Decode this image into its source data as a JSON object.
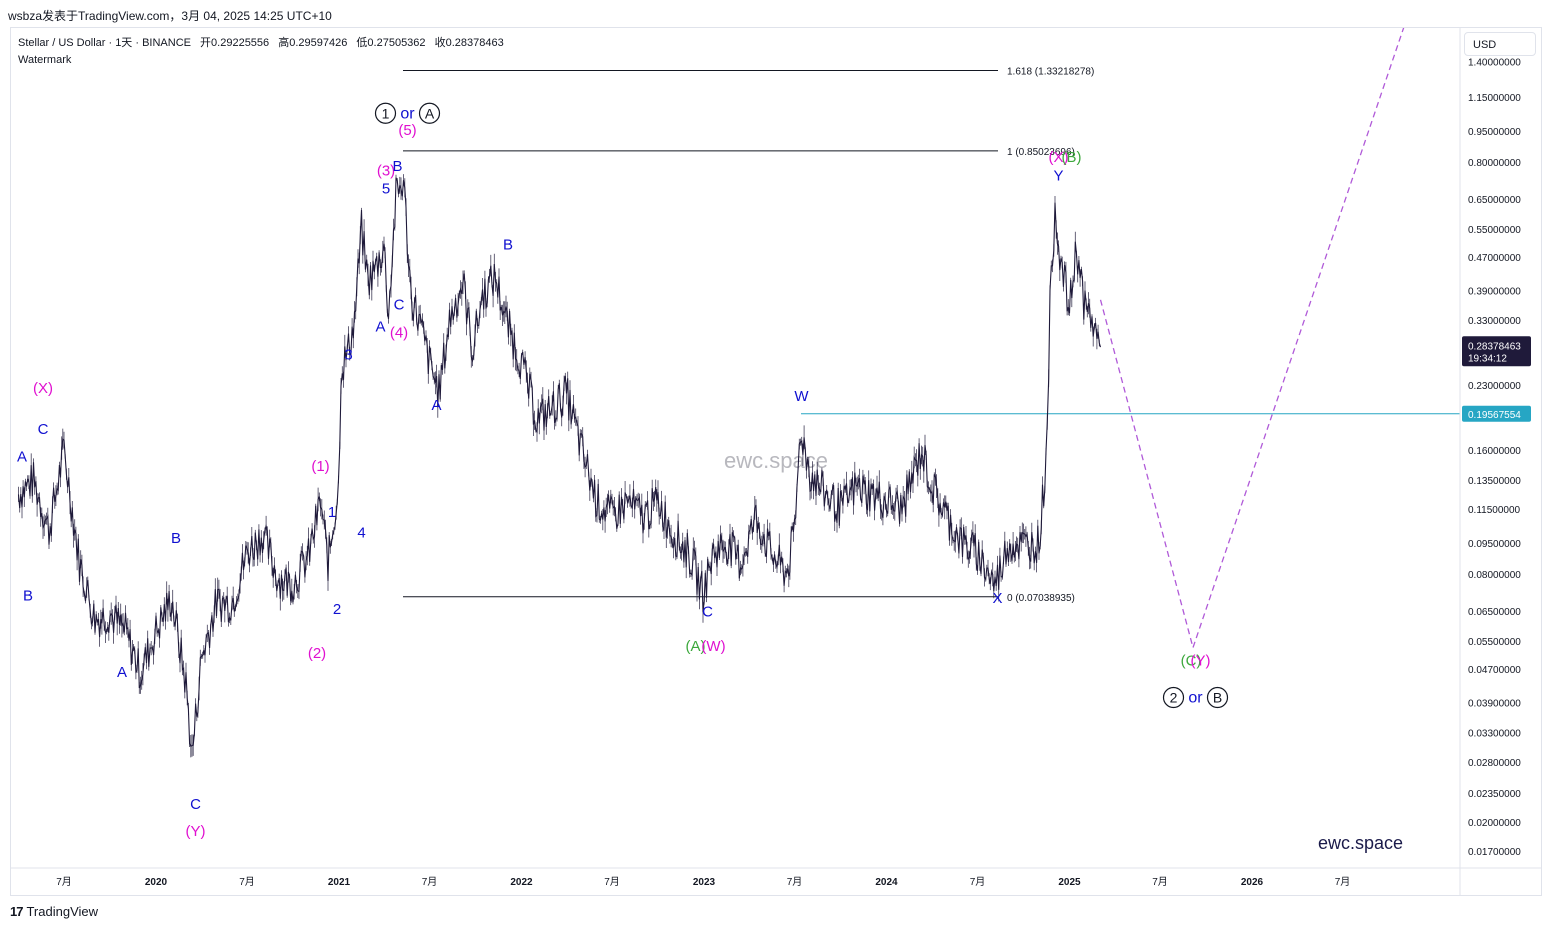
{
  "header": {
    "publish_line": "wsbza发表于TradingView.com，3月 04, 2025 14:25 UTC+10"
  },
  "legend": {
    "symbol": "Stellar / US Dollar · 1天 · BINANCE",
    "open_label": "开",
    "open": "0.29225556",
    "high_label": "高",
    "high": "0.29597426",
    "low_label": "低",
    "low": "0.27505362",
    "close_label": "收",
    "close": "0.28378463",
    "watermark_label": "Watermark"
  },
  "currency": "USD",
  "watermark_center": "ewc.space",
  "watermark_corner": "ewc.space",
  "footer": {
    "logo": "17",
    "brand": "TradingView"
  },
  "colors": {
    "candles": "#1f1a3a",
    "blue": "#1010d0",
    "magenta": "#e010d0",
    "green": "#3ca83c",
    "black": "#131722",
    "cyan": "#26a6c4",
    "projection": "#b05ad8",
    "price_tag": "#1f1a3a"
  },
  "chart_data": {
    "type": "line",
    "series": [
      {
        "values": [
          [
            "2019-04-01",
            0.125
          ],
          [
            "2019-05-01",
            0.135
          ],
          [
            "2019-06-01",
            0.102
          ],
          [
            "2019-07-01",
            0.16
          ],
          [
            "2019-08-01",
            0.085
          ],
          [
            "2019-09-01",
            0.062
          ],
          [
            "2019-10-01",
            0.064
          ],
          [
            "2019-11-01",
            0.058
          ],
          [
            "2019-12-01",
            0.046
          ],
          [
            "2020-01-01",
            0.058
          ],
          [
            "2020-02-01",
            0.07
          ],
          [
            "2020-03-01",
            0.043
          ],
          [
            "2020-03-13",
            0.029
          ],
          [
            "2020-04-01",
            0.05
          ],
          [
            "2020-05-01",
            0.068
          ],
          [
            "2020-06-01",
            0.068
          ],
          [
            "2020-07-01",
            0.09
          ],
          [
            "2020-08-01",
            0.1
          ],
          [
            "2020-09-01",
            0.078
          ],
          [
            "2020-10-01",
            0.076
          ],
          [
            "2020-11-01",
            0.088
          ],
          [
            "2020-11-25",
            0.12
          ],
          [
            "2020-12-10",
            0.085
          ],
          [
            "2020-12-31",
            0.13
          ],
          [
            "2021-01-05",
            0.25
          ],
          [
            "2021-01-20",
            0.28
          ],
          [
            "2021-02-01",
            0.33
          ],
          [
            "2021-02-15",
            0.55
          ],
          [
            "2021-02-28",
            0.41
          ],
          [
            "2021-03-15",
            0.44
          ],
          [
            "2021-04-01",
            0.5
          ],
          [
            "2021-04-10",
            0.34
          ],
          [
            "2021-04-25",
            0.66
          ],
          [
            "2021-05-10",
            0.72
          ],
          [
            "2021-05-25",
            0.38
          ],
          [
            "2021-06-10",
            0.33
          ],
          [
            "2021-07-01",
            0.26
          ],
          [
            "2021-07-20",
            0.22
          ],
          [
            "2021-08-10",
            0.33
          ],
          [
            "2021-09-06",
            0.41
          ],
          [
            "2021-09-25",
            0.28
          ],
          [
            "2021-10-15",
            0.38
          ],
          [
            "2021-11-10",
            0.42
          ],
          [
            "2021-12-01",
            0.33
          ],
          [
            "2022-01-01",
            0.26
          ],
          [
            "2022-02-01",
            0.19
          ],
          [
            "2022-03-01",
            0.2
          ],
          [
            "2022-04-01",
            0.22
          ],
          [
            "2022-05-01",
            0.16
          ],
          [
            "2022-06-01",
            0.12
          ],
          [
            "2022-07-01",
            0.11
          ],
          [
            "2022-08-01",
            0.12
          ],
          [
            "2022-09-01",
            0.11
          ],
          [
            "2022-10-01",
            0.12
          ],
          [
            "2022-11-01",
            0.1
          ],
          [
            "2022-12-01",
            0.09
          ],
          [
            "2022-12-30",
            0.072
          ],
          [
            "2023-01-20",
            0.09
          ],
          [
            "2023-02-15",
            0.095
          ],
          [
            "2023-03-15",
            0.085
          ],
          [
            "2023-04-15",
            0.11
          ],
          [
            "2023-05-15",
            0.09
          ],
          [
            "2023-06-15",
            0.08
          ],
          [
            "2023-07-01",
            0.1
          ],
          [
            "2023-07-13",
            0.18
          ],
          [
            "2023-08-01",
            0.14
          ],
          [
            "2023-09-01",
            0.125
          ],
          [
            "2023-10-01",
            0.115
          ],
          [
            "2023-11-01",
            0.13
          ],
          [
            "2023-12-01",
            0.125
          ],
          [
            "2024-01-01",
            0.12
          ],
          [
            "2024-02-01",
            0.115
          ],
          [
            "2024-03-11",
            0.16
          ],
          [
            "2024-04-01",
            0.13
          ],
          [
            "2024-05-01",
            0.11
          ],
          [
            "2024-06-01",
            0.095
          ],
          [
            "2024-07-01",
            0.09
          ],
          [
            "2024-08-05",
            0.075
          ],
          [
            "2024-09-01",
            0.095
          ],
          [
            "2024-10-01",
            0.094
          ],
          [
            "2024-11-01",
            0.095
          ],
          [
            "2024-11-15",
            0.15
          ],
          [
            "2024-11-23",
            0.35
          ],
          [
            "2024-12-03",
            0.63
          ],
          [
            "2024-12-15",
            0.45
          ],
          [
            "2025-01-01",
            0.35
          ],
          [
            "2025-01-15",
            0.5
          ],
          [
            "2025-02-01",
            0.35
          ],
          [
            "2025-02-15",
            0.33
          ],
          [
            "2025-03-04",
            0.284
          ]
        ]
      }
    ],
    "projection": [
      [
        "2025-03-04",
        0.37
      ],
      [
        "2025-09-05",
        0.053
      ],
      [
        "2026-11-01",
        1.7
      ]
    ],
    "fib_levels": [
      {
        "label": "1.618 (1.33218278)",
        "value": 1.33218278
      },
      {
        "label": "1 (0.85023696)",
        "value": 0.85023696
      },
      {
        "label": "0 (0.07038935)",
        "value": 0.07038935
      }
    ],
    "horizontal_line": {
      "value": 0.19567554,
      "label": "0.19567554"
    },
    "last_price": {
      "value": "0.28378463",
      "countdown": "19:34:12"
    },
    "y_ticks": [
      "1.40000000",
      "1.15000000",
      "0.95000000",
      "0.80000000",
      "0.65000000",
      "0.55000000",
      "0.47000000",
      "0.39000000",
      "0.33000000",
      "0.23000000",
      "0.16000000",
      "0.13500000",
      "0.11500000",
      "0.09500000",
      "0.08000000",
      "0.06500000",
      "0.05500000",
      "0.04700000",
      "0.03900000",
      "0.03300000",
      "0.02800000",
      "0.02350000",
      "0.02000000",
      "0.01700000"
    ],
    "x_ticks": [
      "7月",
      "2020",
      "7月",
      "2021",
      "7月",
      "2022",
      "7月",
      "2023",
      "7月",
      "2024",
      "7月",
      "2025",
      "7月",
      "2026",
      "7月"
    ],
    "y_scale": "log",
    "grid": false,
    "wave_labels": [
      {
        "t": "A",
        "d": "2019-04-08",
        "v": 0.15,
        "c": "blue"
      },
      {
        "t": "B",
        "d": "2019-04-20",
        "v": 0.069,
        "c": "blue"
      },
      {
        "t": "C",
        "d": "2019-05-20",
        "v": 0.175,
        "c": "blue"
      },
      {
        "t": "(X)",
        "d": "2019-05-20",
        "v": 0.22,
        "c": "magenta"
      },
      {
        "t": "A",
        "d": "2019-10-25",
        "v": 0.045,
        "c": "blue"
      },
      {
        "t": "B",
        "d": "2020-02-10",
        "v": 0.095,
        "c": "blue"
      },
      {
        "t": "C",
        "d": "2020-03-20",
        "v": 0.0215,
        "c": "blue"
      },
      {
        "t": "(Y)",
        "d": "2020-03-20",
        "v": 0.0185,
        "c": "magenta"
      },
      {
        "t": "(1)",
        "d": "2020-11-25",
        "v": 0.142,
        "c": "magenta"
      },
      {
        "t": "(2)",
        "d": "2020-11-18",
        "v": 0.05,
        "c": "magenta"
      },
      {
        "t": "1",
        "d": "2020-12-18",
        "v": 0.11,
        "c": "blue"
      },
      {
        "t": "2",
        "d": "2020-12-28",
        "v": 0.064,
        "c": "blue"
      },
      {
        "t": "3",
        "d": "2021-01-20",
        "v": 0.265,
        "c": "blue"
      },
      {
        "t": "4",
        "d": "2021-02-15",
        "v": 0.098,
        "c": "blue"
      },
      {
        "t": "A",
        "d": "2021-03-25",
        "v": 0.31,
        "c": "blue"
      },
      {
        "t": "5",
        "d": "2021-04-05",
        "v": 0.67,
        "c": "blue"
      },
      {
        "t": "(3)",
        "d": "2021-04-05",
        "v": 0.74,
        "c": "magenta"
      },
      {
        "t": "B",
        "d": "2021-04-28",
        "v": 0.76,
        "c": "blue"
      },
      {
        "t": "C",
        "d": "2021-05-01",
        "v": 0.35,
        "c": "blue"
      },
      {
        "t": "(4)",
        "d": "2021-05-01",
        "v": 0.3,
        "c": "magenta"
      },
      {
        "t": "(5)",
        "d": "2021-05-18",
        "v": 0.93,
        "c": "magenta"
      },
      {
        "t": "A",
        "d": "2021-07-15",
        "v": 0.2,
        "c": "blue"
      },
      {
        "t": "B",
        "d": "2021-12-05",
        "v": 0.49,
        "c": "blue"
      },
      {
        "t": "W",
        "d": "2023-07-15",
        "v": 0.21,
        "c": "blue"
      },
      {
        "t": "C",
        "d": "2023-01-08",
        "v": 0.063,
        "c": "blue"
      },
      {
        "t": "(A)",
        "d": "2022-12-15",
        "v": 0.052,
        "c": "green"
      },
      {
        "t": "(W)",
        "d": "2023-01-20",
        "v": 0.052,
        "c": "magenta"
      },
      {
        "t": "X",
        "d": "2024-08-10",
        "v": 0.068,
        "c": "blue"
      },
      {
        "t": "Y",
        "d": "2024-12-10",
        "v": 0.72,
        "c": "blue"
      },
      {
        "t": "(X)",
        "d": "2024-12-10",
        "v": 0.8,
        "c": "magenta"
      },
      {
        "t": "(B)",
        "d": "2025-01-05",
        "v": 0.8,
        "c": "green"
      },
      {
        "t": "(C)",
        "d": "2025-09-01",
        "v": 0.048,
        "c": "green"
      },
      {
        "t": "(Y)",
        "d": "2025-09-20",
        "v": 0.048,
        "c": "magenta"
      }
    ],
    "circle_labels": [
      {
        "a": "1",
        "sep": "or",
        "b": "A",
        "d": "2021-05-18",
        "v": 1.02
      },
      {
        "a": "2",
        "sep": "or",
        "b": "B",
        "d": "2025-09-10",
        "v": 0.039
      }
    ]
  }
}
